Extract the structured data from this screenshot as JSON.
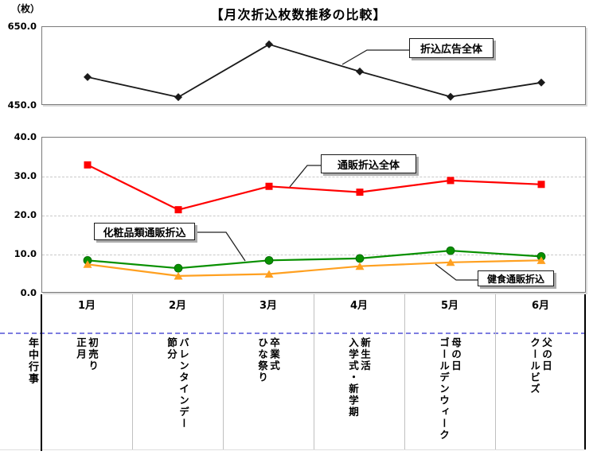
{
  "header": {
    "title": "【月次折込枚数推移の比較】",
    "y_axis_unit": "（枚）"
  },
  "categories": [
    "1月",
    "2月",
    "3月",
    "4月",
    "5月",
    "6月"
  ],
  "chart_data": [
    {
      "type": "line",
      "panel": "upper",
      "ylim": [
        450,
        650
      ],
      "ytick_labels": [
        "650.0",
        "450.0"
      ],
      "grid": false,
      "legend_position": "callout-box inside plot",
      "categories": [
        "1月",
        "2月",
        "3月",
        "4月",
        "5月",
        "6月"
      ],
      "series": [
        {
          "name": "折込広告全体",
          "marker": "diamond",
          "color": "#1a1a1a",
          "values": [
            523,
            472,
            606,
            537,
            473,
            509
          ]
        }
      ]
    },
    {
      "type": "line",
      "panel": "lower",
      "ylim": [
        0,
        40
      ],
      "ytick_labels": [
        "40.0",
        "30.0",
        "20.0",
        "10.0",
        "0.0"
      ],
      "grid": true,
      "gridline_values": [
        30,
        20,
        10
      ],
      "legend_position": "callout-boxes inside plot",
      "categories": [
        "1月",
        "2月",
        "3月",
        "4月",
        "5月",
        "6月"
      ],
      "series": [
        {
          "name": "通販折込全体",
          "marker": "square",
          "color": "#ff0000",
          "values": [
            33,
            21.5,
            27.5,
            26,
            29,
            28
          ]
        },
        {
          "name": "化粧品類通販折込",
          "marker": "circle",
          "color": "#089000",
          "values": [
            8.5,
            6.5,
            8.5,
            9,
            11,
            9.5
          ]
        },
        {
          "name": "健食通販折込",
          "marker": "triangle",
          "color": "#ffa020",
          "values": [
            7.5,
            4.5,
            5,
            7,
            8,
            8.5
          ]
        }
      ]
    }
  ],
  "callouts": [
    {
      "label": "折込広告全体"
    },
    {
      "label": "通販折込全体"
    },
    {
      "label": "化粧品類通販折込"
    },
    {
      "label": "健食通販折込"
    }
  ],
  "events_table": {
    "header_vertical": "年中行事",
    "rows": [
      {
        "month": "1月",
        "right_column": "初売り",
        "left_column": "正月"
      },
      {
        "month": "2月",
        "right_column": "バレンタインデー",
        "left_column": "節分"
      },
      {
        "month": "3月",
        "right_column": "卒業式",
        "left_column": "ひな祭り"
      },
      {
        "month": "4月",
        "right_column": "新生活",
        "left_column": "入学式・新学期"
      },
      {
        "month": "5月",
        "right_column": "母の日",
        "left_column": "ゴールデンウィーク"
      },
      {
        "month": "6月",
        "right_column": "父の日",
        "left_column": "クールビズ"
      }
    ]
  },
  "colors": {
    "flyer_total": "#1a1a1a",
    "mailorder_total": "#ff0000",
    "cosmetics": "#089000",
    "healthfood": "#ffa020",
    "events_divider": "#7d7de0",
    "gridline": "#c9c9c9",
    "panel_border": "#7a7a7a",
    "table_separator": "#c0c0c0",
    "callout_shadow": "#ababab"
  }
}
